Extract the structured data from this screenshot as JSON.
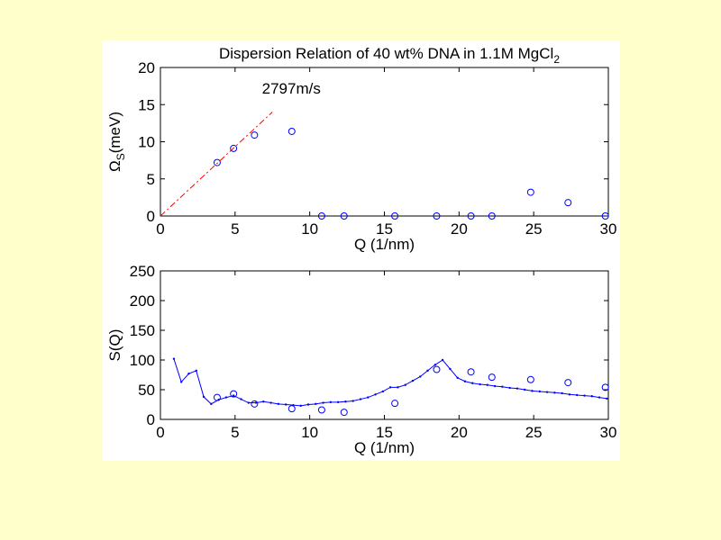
{
  "chart_data": [
    {
      "type": "scatter",
      "title": "Dispersion Relation of 40 wt% DNA in 1.1M MgCl",
      "title_subscript": "2",
      "xlabel": "Q (1/nm)",
      "ylabel": "Ω",
      "ylabel_subscript": "S",
      "ylabel_suffix": "(meV)",
      "xlim": [
        0,
        30
      ],
      "ylim": [
        0,
        20
      ],
      "xticks": [
        0,
        5,
        10,
        15,
        20,
        25,
        30
      ],
      "yticks": [
        0,
        5,
        10,
        15,
        20
      ],
      "grid": false,
      "series": [
        {
          "marker": "circle",
          "color": "#0000ff",
          "x": [
            3.8,
            4.9,
            6.3,
            8.8,
            10.8,
            12.3,
            15.7,
            18.5,
            20.8,
            22.2,
            24.8,
            27.3,
            29.8
          ],
          "y": [
            7.2,
            9.1,
            10.9,
            11.4,
            0,
            0,
            0,
            0,
            0,
            0,
            3.2,
            1.8,
            0
          ]
        },
        {
          "line": "dash-dot",
          "color": "#ff0000",
          "x": [
            0,
            7.5
          ],
          "y": [
            0,
            14
          ]
        }
      ],
      "annotations": [
        {
          "text": "2797m/s",
          "x": 6.8,
          "y": 16.5
        }
      ]
    },
    {
      "type": "line",
      "xlabel": "Q (1/nm)",
      "ylabel": "S(Q)",
      "xlim": [
        0,
        30
      ],
      "ylim": [
        0,
        250
      ],
      "xticks": [
        0,
        5,
        10,
        15,
        20,
        25,
        30
      ],
      "yticks": [
        0,
        50,
        100,
        150,
        200,
        250
      ],
      "grid": false,
      "series": [
        {
          "marker": "dot",
          "line": "solid",
          "color": "#0000ff",
          "x": [
            0.9,
            1.4,
            1.9,
            2.4,
            2.9,
            3.4,
            3.9,
            4.4,
            4.9,
            5.4,
            5.9,
            6.4,
            6.9,
            7.4,
            7.9,
            8.4,
            8.9,
            9.4,
            9.9,
            10.4,
            10.9,
            11.4,
            11.9,
            12.4,
            12.9,
            13.4,
            13.9,
            14.4,
            14.9,
            15.4,
            15.9,
            16.4,
            16.9,
            17.4,
            17.9,
            18.4,
            18.9,
            19.4,
            19.9,
            20.4,
            20.9,
            21.4,
            21.9,
            22.4,
            22.9,
            23.4,
            23.9,
            24.4,
            24.9,
            25.4,
            25.9,
            26.4,
            26.9,
            27.4,
            27.9,
            28.4,
            28.9,
            29.4,
            29.9
          ],
          "y": [
            102,
            63,
            77,
            82,
            38,
            26,
            33,
            37,
            40,
            34,
            28,
            28,
            30,
            28,
            26,
            25,
            24,
            23,
            25,
            26,
            28,
            29,
            29,
            30,
            31,
            34,
            37,
            42,
            47,
            54,
            54,
            58,
            65,
            72,
            82,
            92,
            100,
            85,
            70,
            64,
            61,
            59,
            58,
            56,
            55,
            53,
            52,
            50,
            48,
            47,
            46,
            45,
            44,
            42,
            41,
            40,
            39,
            37,
            35
          ]
        },
        {
          "marker": "circle",
          "line": "none",
          "color": "#0000ff",
          "x": [
            3.8,
            4.9,
            6.3,
            8.8,
            10.8,
            12.3,
            15.7,
            18.5,
            20.8,
            22.2,
            24.8,
            27.3,
            29.8
          ],
          "y": [
            37,
            43,
            26,
            18,
            16,
            12,
            27,
            84,
            80,
            71,
            67,
            62,
            54
          ]
        }
      ]
    }
  ]
}
